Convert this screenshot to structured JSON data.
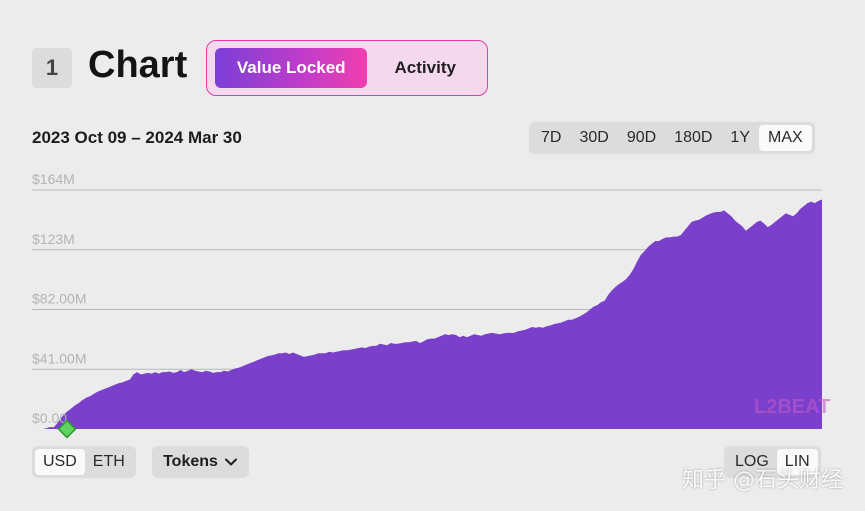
{
  "header": {
    "section_number": "1",
    "title": "Chart",
    "tabs": [
      {
        "label": "Value Locked",
        "active": true
      },
      {
        "label": "Activity",
        "active": false
      }
    ]
  },
  "date_range": "2023 Oct 09 – 2024 Mar 30",
  "time_ranges": [
    {
      "label": "7D",
      "active": false
    },
    {
      "label": "30D",
      "active": false
    },
    {
      "label": "90D",
      "active": false
    },
    {
      "label": "180D",
      "active": false
    },
    {
      "label": "1Y",
      "active": false
    },
    {
      "label": "MAX",
      "active": true
    }
  ],
  "currency_toggle": [
    {
      "label": "USD",
      "active": true
    },
    {
      "label": "ETH",
      "active": false
    }
  ],
  "tokens_label": "Tokens",
  "scale_toggle": [
    {
      "label": "LOG",
      "active": false
    },
    {
      "label": "LIN",
      "active": true
    }
  ],
  "brand_mark": "L2BEAT",
  "watermark": "知乎 @石头财经",
  "colors": {
    "area_fill": "#7a3fcb",
    "gridline": "#b8b8b8",
    "marker": "#5fd45f",
    "accent_pink": "#e23aa8"
  },
  "chart_data": {
    "type": "area",
    "title": "",
    "xlabel": "",
    "ylabel": "",
    "x_range": [
      "2023-10-09",
      "2024-03-30"
    ],
    "ylim": [
      0,
      164
    ],
    "y_ticks": [
      "$0.00",
      "$41.00M",
      "$82.00M",
      "$123M",
      "$164M"
    ],
    "y_tick_values": [
      0,
      41,
      82,
      123,
      164
    ],
    "grid": true,
    "log_scale": false,
    "series": [
      {
        "values": [
          0,
          0,
          0,
          0,
          0.5,
          1.4,
          1.2,
          4,
          7.5,
          10.5,
          12.5,
          14.5,
          16.5,
          18,
          20,
          21.5,
          22.5,
          24,
          25.5,
          26.5,
          27.5,
          28.5,
          29.5,
          30.5,
          31.5,
          32,
          33,
          34,
          37.5,
          39,
          37.5,
          38,
          38.5,
          38,
          39,
          38,
          39,
          39,
          39.5,
          38.5,
          39,
          40.5,
          39,
          40,
          41,
          40,
          39.5,
          39,
          40,
          39.5,
          38.5,
          39,
          39,
          40,
          39.5,
          40.5,
          41.5,
          42,
          43,
          44,
          45,
          46,
          47,
          48,
          49,
          50,
          50.5,
          51,
          52,
          52,
          52.5,
          51.5,
          52.5,
          51.5,
          50.5,
          49.5,
          50,
          50.5,
          51,
          52,
          52,
          52,
          53,
          52.5,
          53,
          53.5,
          54,
          54,
          54.5,
          55,
          55.5,
          56,
          55.5,
          56.5,
          57,
          57,
          58.5,
          58,
          57.5,
          59,
          58.5,
          58.5,
          59,
          59.5,
          59.5,
          60,
          60.5,
          59,
          60,
          61.5,
          62,
          62,
          63,
          64,
          65,
          64.5,
          65,
          64.5,
          63,
          64,
          63,
          64,
          65,
          64.5,
          64,
          65,
          65.5,
          66,
          65.5,
          65,
          65.5,
          66,
          66,
          66,
          67,
          67.5,
          68,
          69,
          70,
          69.5,
          70,
          69.5,
          70.5,
          71,
          72,
          72.5,
          73,
          74,
          75,
          75,
          76,
          77,
          78.5,
          80,
          82,
          84,
          85,
          87,
          88,
          92,
          95,
          97.5,
          99.5,
          101,
          103,
          106,
          110,
          115,
          119.5,
          122,
          125,
          127,
          129,
          129,
          130.5,
          131.5,
          131.5,
          132,
          132,
          133,
          136,
          139,
          142,
          143,
          143.5,
          145,
          146.5,
          147.5,
          148.5,
          149,
          149,
          150,
          148,
          146,
          143,
          141,
          139,
          136,
          138,
          140,
          142,
          143,
          141,
          138.5,
          140,
          142,
          144,
          146,
          148,
          147,
          146,
          148,
          151,
          153,
          155,
          156,
          155,
          156.5,
          157.5
        ]
      }
    ],
    "marker": {
      "x": "2023-10-09",
      "y": 0
    }
  }
}
